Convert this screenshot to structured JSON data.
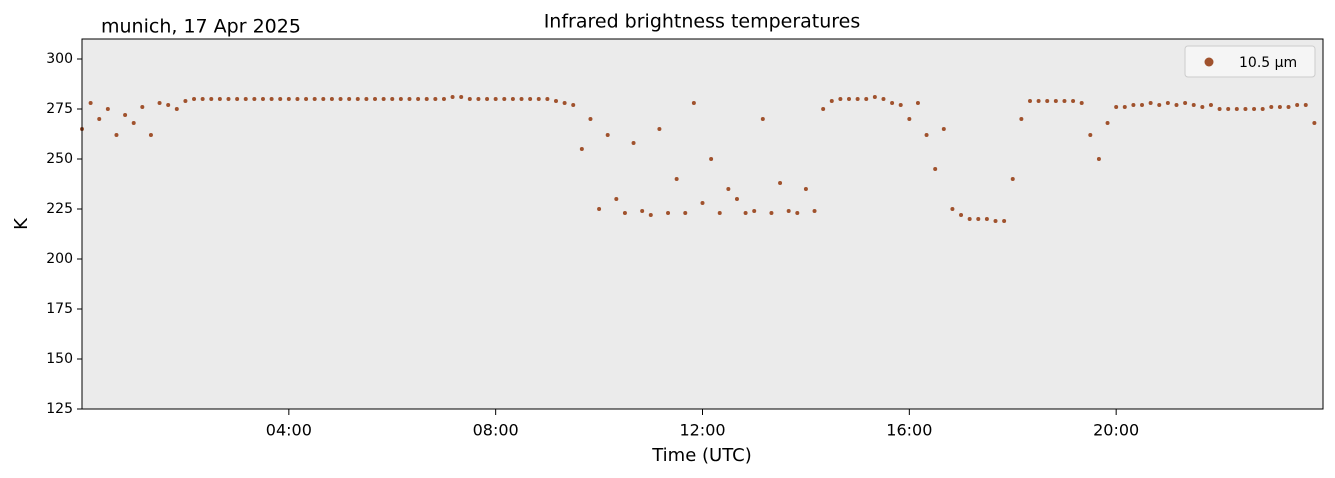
{
  "chart_data": {
    "type": "scatter",
    "title": "Infrared brightness temperatures",
    "annotation": "munich, 17 Apr 2025",
    "xlabel": "Time (UTC)",
    "ylabel": "K",
    "legend": "upper right",
    "series": [
      {
        "name": "10.5 µm",
        "color": "#a0522d",
        "x": [
          0,
          10,
          20,
          30,
          40,
          50,
          60,
          70,
          80,
          90,
          100,
          110,
          120,
          130,
          140,
          150,
          160,
          170,
          180,
          190,
          200,
          210,
          220,
          230,
          240,
          250,
          260,
          270,
          280,
          290,
          300,
          310,
          320,
          330,
          340,
          350,
          360,
          370,
          380,
          390,
          400,
          410,
          420,
          430,
          440,
          450,
          460,
          470,
          480,
          490,
          500,
          510,
          520,
          530,
          540,
          550,
          560,
          570,
          580,
          590,
          600,
          610,
          620,
          630,
          640,
          650,
          660,
          670,
          680,
          690,
          700,
          710,
          720,
          730,
          740,
          750,
          760,
          770,
          780,
          790,
          800,
          810,
          820,
          830,
          840,
          850,
          860,
          870,
          880,
          890,
          900,
          910,
          920,
          930,
          940,
          950,
          960,
          970,
          980,
          990,
          1000,
          1010,
          1020,
          1030,
          1040,
          1050,
          1060,
          1070,
          1080,
          1090,
          1100,
          1110,
          1120,
          1130,
          1140,
          1150,
          1160,
          1170,
          1180,
          1190,
          1200,
          1210,
          1220,
          1230,
          1240,
          1250,
          1260,
          1270,
          1280,
          1290,
          1300,
          1310,
          1320,
          1330,
          1340,
          1350,
          1360,
          1370,
          1380,
          1390,
          1400,
          1410,
          1420,
          1430
        ],
        "values": [
          265,
          278,
          270,
          275,
          262,
          272,
          268,
          276,
          262,
          278,
          277,
          275,
          279,
          280,
          280,
          280,
          280,
          280,
          280,
          280,
          280,
          280,
          280,
          280,
          280,
          280,
          280,
          280,
          280,
          280,
          280,
          280,
          280,
          280,
          280,
          280,
          280,
          280,
          280,
          280,
          280,
          280,
          280,
          281,
          281,
          280,
          280,
          280,
          280,
          280,
          280,
          280,
          280,
          280,
          280,
          279,
          278,
          277,
          255,
          270,
          225,
          262,
          230,
          223,
          258,
          224,
          222,
          265,
          223,
          240,
          223,
          278,
          228,
          250,
          223,
          235,
          230,
          223,
          224,
          270,
          223,
          238,
          224,
          223,
          235,
          224,
          275,
          279,
          280,
          280,
          280,
          280,
          281,
          280,
          278,
          277,
          270,
          278,
          262,
          245,
          265,
          225,
          222,
          220,
          220,
          220,
          219,
          219,
          240,
          270,
          279,
          279,
          279,
          279,
          279,
          279,
          278,
          262,
          250,
          268,
          276,
          276,
          277,
          277,
          278,
          277,
          278,
          277,
          278,
          277,
          276,
          277,
          275,
          275,
          275,
          275,
          275,
          275,
          276,
          276,
          276,
          277,
          277,
          268
        ]
      }
    ],
    "xlim": [
      0,
      1440
    ],
    "xticks": [
      {
        "value": 240,
        "label": "04:00"
      },
      {
        "value": 480,
        "label": "08:00"
      },
      {
        "value": 720,
        "label": "12:00"
      },
      {
        "value": 960,
        "label": "16:00"
      },
      {
        "value": 1200,
        "label": "20:00"
      }
    ],
    "ylim": [
      125,
      310
    ],
    "yticks": [
      125,
      150,
      175,
      200,
      225,
      250,
      275,
      300
    ]
  }
}
